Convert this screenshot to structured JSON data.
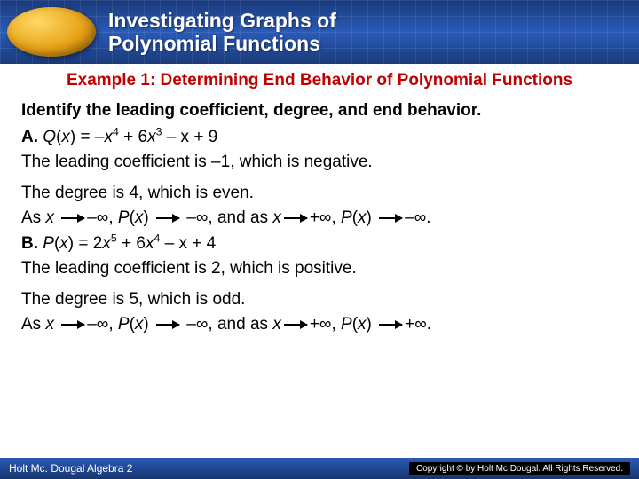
{
  "header": {
    "title_line1": "Investigating Graphs of",
    "title_line2": "Polynomial Functions",
    "bg_gradient": [
      "#1a3a7a",
      "#2a5bb8",
      "#1a3a7a"
    ],
    "oval_gradient": [
      "#ffd966",
      "#e8a318",
      "#b37400"
    ],
    "title_color": "#ffffff"
  },
  "example": {
    "label": "Example 1: Determining End Behavior of Polynomial Functions",
    "label_color": "#c00000",
    "instruction": "Identify the leading coefficient, degree, and end behavior."
  },
  "partA": {
    "label": "A.",
    "func_name": "Q",
    "equation_prefix": "(",
    "var": "x",
    "equation_body": ") = –",
    "term1_exp": "4",
    "plus1": " + 6",
    "term2_exp": "3",
    "tail": " – x + 9",
    "leading_line": "The leading coefficient is –1, which is negative.",
    "degree_line": "The degree is 4, which is even.",
    "as_prefix": "As ",
    "neg_inf": "–∞, ",
    "px": "P",
    "open": "(",
    "close": ") ",
    "to_neg": " –∞, and as ",
    "plus_inf": "+∞, ",
    "end_neg": "–∞."
  },
  "partB": {
    "label": "B.",
    "func_name": "P",
    "equation_prefix": "(",
    "var": "x",
    "equation_body": ") = 2",
    "term1_exp": "5",
    "plus1": " + 6",
    "term2_exp": "4",
    "tail": " – x + 4",
    "leading_line": "The leading coefficient is 2, which is positive.",
    "degree_line": "The degree is 5, which is odd.",
    "end_pos": "+∞."
  },
  "footer": {
    "left": "Holt Mc. Dougal Algebra 2",
    "right": "Copyright © by Holt Mc Dougal. All Rights Reserved."
  },
  "typography": {
    "title_fontsize": 23,
    "body_fontsize": 19,
    "font_family": "Verdana"
  }
}
